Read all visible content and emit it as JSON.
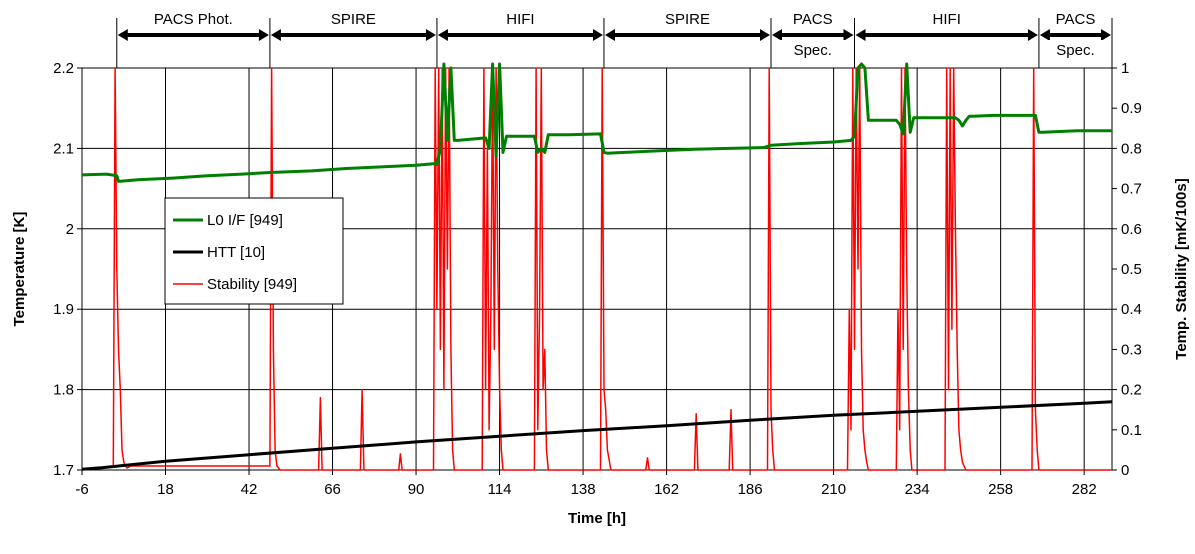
{
  "chart_data": {
    "type": "line",
    "title": "",
    "xlabel": "Time [h]",
    "ylabel": "Temperature [K]",
    "y2label": "Temp. Stability [mK/100s]",
    "xlim": [
      -6,
      290
    ],
    "ylim": [
      1.7,
      2.2
    ],
    "y2lim": [
      0,
      1
    ],
    "x_ticks": [
      "-6",
      "18",
      "42",
      "66",
      "90",
      "114",
      "138",
      "162",
      "186",
      "210",
      "234",
      "258",
      "282"
    ],
    "y_ticks": [
      "1.7",
      "1.8",
      "1.9",
      "2",
      "2.1",
      "2.2"
    ],
    "y2_ticks": [
      "0",
      "0.1",
      "0.2",
      "0.3",
      "0.4",
      "0.5",
      "0.6",
      "0.7",
      "0.8",
      "0.9",
      "1"
    ],
    "grid": true,
    "legend_position": "center-left",
    "phases": [
      {
        "label": "PACS Phot.",
        "start": 4,
        "end": 48
      },
      {
        "label": "SPIRE",
        "start": 48,
        "end": 96
      },
      {
        "label": "HIFI",
        "start": 96,
        "end": 144
      },
      {
        "label": "SPIRE",
        "start": 144,
        "end": 192
      },
      {
        "label": "PACS",
        "label2": "Spec.",
        "start": 192,
        "end": 216
      },
      {
        "label": "HIFI",
        "start": 216,
        "end": 269
      },
      {
        "label": "PACS",
        "label2": "Spec.",
        "start": 269,
        "end": 290
      }
    ],
    "series": [
      {
        "name": "L0 I/F [949]",
        "color": "#008000",
        "axis": "left",
        "x": [
          -6,
          1,
          4,
          4.5,
          10,
          20,
          30,
          40,
          48,
          60,
          70,
          80,
          90,
          95,
          96,
          97,
          98,
          99,
          100,
          101,
          102,
          110,
          111,
          112,
          113,
          114,
          115,
          116,
          120,
          124,
          125,
          126,
          127,
          128,
          134,
          143,
          144,
          145,
          150,
          160,
          170,
          180,
          190,
          192,
          200,
          210,
          215,
          216,
          217,
          218,
          219,
          220,
          228,
          229,
          230,
          231,
          232,
          233,
          234,
          240,
          245,
          246,
          247,
          248,
          249,
          250,
          256,
          262,
          268,
          269,
          270,
          280,
          290
        ],
        "y": [
          2.067,
          2.068,
          2.066,
          2.059,
          2.061,
          2.063,
          2.066,
          2.068,
          2.07,
          2.072,
          2.075,
          2.077,
          2.079,
          2.081,
          2.08,
          2.1,
          2.21,
          2.11,
          2.2,
          2.11,
          2.11,
          2.113,
          2.1,
          2.21,
          2.09,
          2.21,
          2.095,
          2.115,
          2.115,
          2.115,
          2.095,
          2.1,
          2.095,
          2.117,
          2.117,
          2.118,
          2.095,
          2.094,
          2.095,
          2.097,
          2.099,
          2.1,
          2.101,
          2.104,
          2.106,
          2.108,
          2.11,
          2.115,
          2.2,
          2.21,
          2.2,
          2.135,
          2.135,
          2.13,
          2.118,
          2.21,
          2.12,
          2.138,
          2.138,
          2.138,
          2.138,
          2.135,
          2.128,
          2.135,
          2.14,
          2.14,
          2.141,
          2.141,
          2.141,
          2.12,
          2.12,
          2.122,
          2.122
        ]
      },
      {
        "name": "HTT [10]",
        "color": "#000000",
        "axis": "left",
        "x": [
          -6,
          0,
          18,
          42,
          66,
          90,
          114,
          138,
          162,
          186,
          210,
          234,
          258,
          282,
          290
        ],
        "y": [
          1.701,
          1.703,
          1.711,
          1.719,
          1.727,
          1.735,
          1.742,
          1.749,
          1.755,
          1.762,
          1.768,
          1.773,
          1.778,
          1.783,
          1.785
        ]
      },
      {
        "name": "Stability [949]",
        "color": "#ff0000",
        "axis": "right",
        "x": [
          -6,
          3,
          3.5,
          4,
          4.5,
          5,
          5.5,
          6,
          6.5,
          7,
          8,
          20,
          40,
          48,
          48.5,
          49,
          49.5,
          50,
          51,
          62,
          62.5,
          63,
          74,
          74.5,
          75,
          85,
          85.5,
          86,
          95,
          95.5,
          96,
          96.5,
          97,
          97.5,
          98,
          98.5,
          99,
          99.5,
          100,
          100.5,
          101,
          109,
          109.5,
          110,
          110.5,
          111,
          111.5,
          112,
          112.5,
          113,
          113.5,
          114,
          114.5,
          115,
          124,
          124.5,
          125,
          125.5,
          126,
          126.5,
          127,
          127.5,
          128,
          143,
          143.5,
          144,
          144.5,
          145,
          146,
          156,
          156.5,
          157,
          170,
          170.5,
          171,
          180,
          180.5,
          181,
          191,
          191.5,
          192,
          192.5,
          193,
          214,
          214.5,
          215,
          215.5,
          216,
          216.5,
          217,
          217.5,
          218,
          218.5,
          219,
          219.5,
          220,
          228,
          228.5,
          229,
          229.5,
          230,
          230.5,
          231,
          231.5,
          232,
          232.5,
          233,
          242,
          242.5,
          243,
          243.5,
          244,
          244.5,
          245,
          245.5,
          246,
          246.5,
          247,
          247.5,
          248,
          267,
          267.5,
          268,
          268.5,
          269,
          290
        ],
        "y": [
          0,
          0.01,
          1,
          0.5,
          0.3,
          0.2,
          0.05,
          0.02,
          0.01,
          0.005,
          0.01,
          0.01,
          0.01,
          0.01,
          1,
          0.3,
          0.05,
          0.01,
          0,
          0,
          0.18,
          0,
          0,
          0.2,
          0,
          0,
          0.04,
          0,
          0,
          1,
          0.4,
          1,
          0.3,
          1,
          0.2,
          1,
          0.5,
          1,
          0.3,
          0.05,
          0,
          0,
          1,
          0.2,
          0.8,
          0.1,
          0.4,
          1,
          0.3,
          1,
          0.5,
          0.2,
          0.05,
          0,
          0,
          1,
          0.1,
          0.4,
          1,
          0.2,
          0.3,
          0.05,
          0,
          0,
          1,
          0.2,
          0.15,
          0.05,
          0,
          0,
          0.03,
          0,
          0,
          0.14,
          0,
          0,
          0.15,
          0,
          0,
          1,
          0.15,
          0.05,
          0,
          0,
          0.4,
          0.1,
          1,
          0.3,
          1,
          0.5,
          1,
          0.3,
          0.1,
          0.05,
          0.02,
          0,
          0,
          0.4,
          0.1,
          1,
          0.3,
          1,
          0.5,
          0.2,
          0.05,
          0,
          0,
          0,
          1,
          0.2,
          1,
          0.35,
          1,
          0.6,
          0.3,
          0.1,
          0.05,
          0.02,
          0.01,
          0,
          0,
          1,
          0.15,
          0.05,
          0,
          0
        ]
      }
    ]
  }
}
